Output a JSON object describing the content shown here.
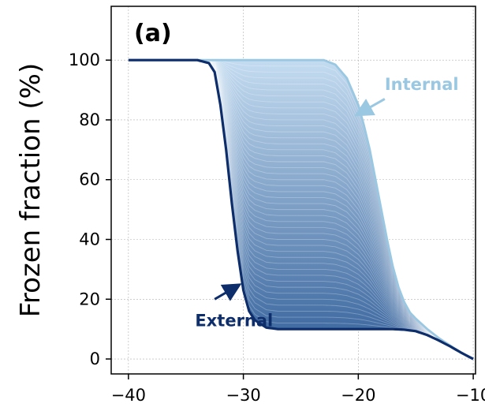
{
  "chart_data": {
    "type": "line",
    "panel_label": "(a)",
    "xlabel": "",
    "ylabel": "Frozen fraction (%)",
    "xlim": [
      -41.5,
      -9.8
    ],
    "ylim": [
      -5,
      118
    ],
    "grid": true,
    "x_ticks": [
      -40,
      -30,
      -20,
      -10
    ],
    "x_tick_labels": [
      "−40",
      "−30",
      "−20",
      "−10"
    ],
    "y_ticks": [
      0,
      20,
      40,
      60,
      80,
      100
    ],
    "y_tick_labels": [
      "0",
      "20",
      "40",
      "60",
      "80",
      "100"
    ],
    "colors": {
      "external": "#0d2d6b",
      "internal": "#9ac8e2",
      "fill_dark": "#33609a",
      "fill_light": "#c4dcf0"
    },
    "annotations": [
      {
        "text": "Internal",
        "series": "internal",
        "text_x": -17.7,
        "text_y": 90,
        "arrow_from": [
          -17.7,
          87
        ],
        "arrow_to": [
          -20,
          82
        ]
      },
      {
        "text": "External",
        "series": "external",
        "text_x": -34.2,
        "text_y": 11,
        "arrow_from": [
          -32.5,
          20
        ],
        "arrow_to": [
          -30.5,
          24.5
        ]
      }
    ],
    "series": [
      {
        "name": "External",
        "x": [
          -40,
          -34,
          -33,
          -32.5,
          -32,
          -31.5,
          -31,
          -30.5,
          -30,
          -29.5,
          -29,
          -28,
          -27,
          -25,
          -22,
          -19,
          -17,
          -16,
          -15,
          -14,
          -13,
          -12,
          -11,
          -10
        ],
        "y": [
          100,
          100,
          99,
          96,
          85,
          70,
          52,
          36,
          23,
          16,
          13,
          10.5,
          10,
          10,
          10,
          10,
          10,
          9.8,
          9.3,
          8,
          6.2,
          4.2,
          2,
          0
        ]
      },
      {
        "name": "Internal",
        "x": [
          -40,
          -30,
          -25,
          -23,
          -22,
          -21,
          -20,
          -19.5,
          -19,
          -18.5,
          -18,
          -17.5,
          -17,
          -16.5,
          -16,
          -15.5,
          -15,
          -14,
          -13,
          -12,
          -11,
          -10
        ],
        "y": [
          100,
          100,
          100,
          100,
          98.5,
          94,
          85,
          78,
          70,
          60,
          50,
          40,
          31,
          24,
          19,
          15.5,
          13.5,
          10,
          7,
          4.5,
          2,
          0
        ]
      }
    ],
    "intermediate_count": 45
  }
}
